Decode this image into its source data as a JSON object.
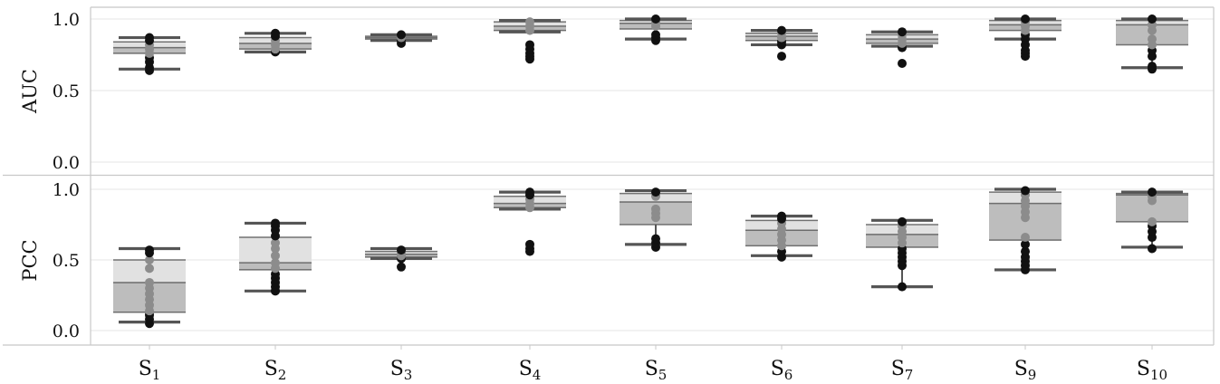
{
  "chart_data": [
    {
      "type": "box",
      "ylabel": "AUC",
      "ylim": [
        0.0,
        1.0
      ],
      "yticks": [
        "0.0",
        "0.5",
        "1.0"
      ],
      "categories": [
        {
          "base": "S",
          "sub": "1"
        },
        {
          "base": "S",
          "sub": "2"
        },
        {
          "base": "S",
          "sub": "3"
        },
        {
          "base": "S",
          "sub": "4"
        },
        {
          "base": "S",
          "sub": "5"
        },
        {
          "base": "S",
          "sub": "6"
        },
        {
          "base": "S",
          "sub": "7"
        },
        {
          "base": "S",
          "sub": "9"
        },
        {
          "base": "S",
          "sub": "10"
        }
      ],
      "boxes": [
        {
          "min": 0.65,
          "q1": 0.76,
          "median": 0.8,
          "q3": 0.84,
          "max": 0.87,
          "points": [
            0.64,
            0.66,
            0.7,
            0.73,
            0.76,
            0.79,
            0.82,
            0.85,
            0.87
          ]
        },
        {
          "min": 0.77,
          "q1": 0.79,
          "median": 0.83,
          "q3": 0.87,
          "max": 0.9,
          "points": [
            0.77,
            0.79,
            0.82,
            0.85,
            0.88,
            0.9
          ]
        },
        {
          "min": 0.85,
          "q1": 0.86,
          "median": 0.87,
          "q3": 0.88,
          "max": 0.89,
          "points": [
            0.83,
            0.85,
            0.87,
            0.89
          ]
        },
        {
          "min": 0.91,
          "q1": 0.92,
          "median": 0.95,
          "q3": 0.98,
          "max": 0.99,
          "points": [
            0.72,
            0.74,
            0.76,
            0.79,
            0.82,
            0.92,
            0.95,
            0.98
          ]
        },
        {
          "min": 0.86,
          "q1": 0.93,
          "median": 0.97,
          "q3": 0.99,
          "max": 1.0,
          "points": [
            0.85,
            0.87,
            0.89,
            0.95,
            0.98,
            1.0
          ]
        },
        {
          "min": 0.82,
          "q1": 0.85,
          "median": 0.88,
          "q3": 0.9,
          "max": 0.92,
          "points": [
            0.74,
            0.82,
            0.84,
            0.87,
            0.9,
            0.92
          ]
        },
        {
          "min": 0.81,
          "q1": 0.83,
          "median": 0.86,
          "q3": 0.89,
          "max": 0.91,
          "points": [
            0.69,
            0.8,
            0.83,
            0.86,
            0.89,
            0.91
          ]
        },
        {
          "min": 0.86,
          "q1": 0.92,
          "median": 0.96,
          "q3": 0.99,
          "max": 1.0,
          "points": [
            0.74,
            0.76,
            0.78,
            0.82,
            0.86,
            0.89,
            0.92,
            0.95,
            0.98,
            1.0
          ]
        },
        {
          "min": 0.66,
          "q1": 0.82,
          "median": 0.96,
          "q3": 0.99,
          "max": 1.0,
          "points": [
            0.65,
            0.67,
            0.74,
            0.78,
            0.82,
            0.86,
            0.92,
            0.96,
            1.0
          ]
        }
      ]
    },
    {
      "type": "box",
      "ylabel": "PCC",
      "ylim": [
        0.0,
        1.0
      ],
      "yticks": [
        "0.0",
        "0.5",
        "1.0"
      ],
      "categories": [
        {
          "base": "S",
          "sub": "1"
        },
        {
          "base": "S",
          "sub": "2"
        },
        {
          "base": "S",
          "sub": "3"
        },
        {
          "base": "S",
          "sub": "4"
        },
        {
          "base": "S",
          "sub": "5"
        },
        {
          "base": "S",
          "sub": "6"
        },
        {
          "base": "S",
          "sub": "7"
        },
        {
          "base": "S",
          "sub": "9"
        },
        {
          "base": "S",
          "sub": "10"
        }
      ],
      "boxes": [
        {
          "min": 0.06,
          "q1": 0.13,
          "median": 0.34,
          "q3": 0.5,
          "max": 0.58,
          "points": [
            0.05,
            0.08,
            0.11,
            0.14,
            0.18,
            0.22,
            0.26,
            0.3,
            0.34,
            0.44,
            0.5,
            0.55,
            0.57
          ]
        },
        {
          "min": 0.28,
          "q1": 0.43,
          "median": 0.48,
          "q3": 0.66,
          "max": 0.76,
          "points": [
            0.28,
            0.31,
            0.34,
            0.37,
            0.4,
            0.44,
            0.48,
            0.53,
            0.58,
            0.62,
            0.67,
            0.71,
            0.74,
            0.76
          ]
        },
        {
          "min": 0.51,
          "q1": 0.52,
          "median": 0.54,
          "q3": 0.56,
          "max": 0.58,
          "points": [
            0.45,
            0.51,
            0.53,
            0.55,
            0.57
          ]
        },
        {
          "min": 0.86,
          "q1": 0.87,
          "median": 0.9,
          "q3": 0.95,
          "max": 0.98,
          "points": [
            0.56,
            0.58,
            0.61,
            0.87,
            0.9,
            0.93,
            0.96,
            0.98
          ]
        },
        {
          "min": 0.61,
          "q1": 0.75,
          "median": 0.91,
          "q3": 0.97,
          "max": 0.99,
          "points": [
            0.59,
            0.62,
            0.65,
            0.8,
            0.83,
            0.86,
            0.95,
            0.98
          ]
        },
        {
          "min": 0.53,
          "q1": 0.6,
          "median": 0.71,
          "q3": 0.78,
          "max": 0.81,
          "points": [
            0.52,
            0.56,
            0.6,
            0.64,
            0.68,
            0.72,
            0.76,
            0.79,
            0.81
          ]
        },
        {
          "min": 0.31,
          "q1": 0.59,
          "median": 0.68,
          "q3": 0.75,
          "max": 0.78,
          "points": [
            0.31,
            0.46,
            0.49,
            0.52,
            0.55,
            0.58,
            0.62,
            0.66,
            0.7,
            0.74,
            0.77
          ]
        },
        {
          "min": 0.43,
          "q1": 0.64,
          "median": 0.9,
          "q3": 0.98,
          "max": 1.0,
          "points": [
            0.43,
            0.46,
            0.49,
            0.52,
            0.56,
            0.61,
            0.66,
            0.8,
            0.84,
            0.88,
            0.92,
            0.96,
            0.99
          ]
        },
        {
          "min": 0.59,
          "q1": 0.77,
          "median": 0.96,
          "q3": 0.97,
          "max": 0.98,
          "points": [
            0.58,
            0.66,
            0.7,
            0.74,
            0.77,
            0.92,
            0.95,
            0.98
          ]
        }
      ]
    }
  ],
  "style": {
    "box_upper_color": "#e1e1e1",
    "box_lower_color": "#bdbdbd",
    "whisker_color": "#555555",
    "point_dark_color": "#111111",
    "point_light_color": "#8c8c8c"
  }
}
